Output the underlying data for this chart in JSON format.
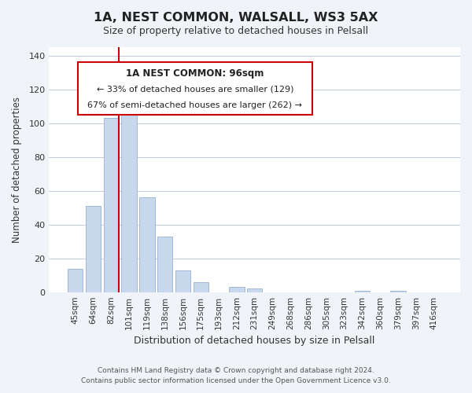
{
  "title": "1A, NEST COMMON, WALSALL, WS3 5AX",
  "subtitle": "Size of property relative to detached houses in Pelsall",
  "xlabel": "Distribution of detached houses by size in Pelsall",
  "ylabel": "Number of detached properties",
  "categories": [
    "45sqm",
    "64sqm",
    "82sqm",
    "101sqm",
    "119sqm",
    "138sqm",
    "156sqm",
    "175sqm",
    "193sqm",
    "212sqm",
    "231sqm",
    "249sqm",
    "268sqm",
    "286sqm",
    "305sqm",
    "323sqm",
    "342sqm",
    "360sqm",
    "379sqm",
    "397sqm",
    "416sqm"
  ],
  "values": [
    14,
    51,
    103,
    106,
    56,
    33,
    13,
    6,
    0,
    3,
    2,
    0,
    0,
    0,
    0,
    0,
    1,
    0,
    1,
    0,
    0
  ],
  "bar_color": "#c8d8ec",
  "bar_edge_color": "#a0b8d8",
  "vline_color": "#cc0000",
  "vline_x": 2.425,
  "ylim": [
    0,
    145
  ],
  "yticks": [
    0,
    20,
    40,
    60,
    80,
    100,
    120,
    140
  ],
  "annotation_title": "1A NEST COMMON: 96sqm",
  "annotation_line1": "← 33% of detached houses are smaller (129)",
  "annotation_line2": "67% of semi-detached houses are larger (262) →",
  "annotation_box_color": "#ffffff",
  "annotation_box_edge": "#cc0000",
  "footer_line1": "Contains HM Land Registry data © Crown copyright and database right 2024.",
  "footer_line2": "Contains public sector information licensed under the Open Government Licence v3.0.",
  "background_color": "#f0f4f8",
  "plot_background_color": "#ffffff",
  "grid_color": "#c0ccd8"
}
